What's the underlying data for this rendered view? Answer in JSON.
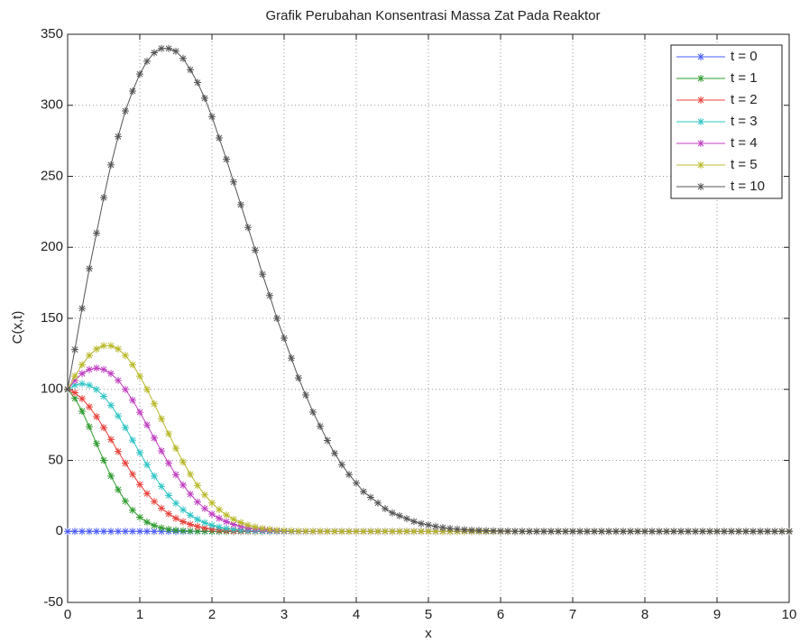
{
  "chart_data": {
    "type": "line",
    "title": "Grafik Perubahan Konsentrasi Massa Zat Pada Reaktor",
    "x_label": "x",
    "y_label": "C(x,t)",
    "xlim": [
      0,
      10
    ],
    "ylim": [
      -50,
      350
    ],
    "xticks": [
      0,
      1,
      2,
      3,
      4,
      5,
      6,
      7,
      8,
      9,
      10
    ],
    "yticks": [
      -50,
      0,
      50,
      100,
      150,
      200,
      250,
      300,
      350
    ],
    "grid": true,
    "legend": "upper right",
    "marker": "*",
    "x": [
      0,
      0.1,
      0.2,
      0.3,
      0.4,
      0.5,
      0.6,
      0.7,
      0.8,
      0.9,
      1,
      1.1,
      1.2,
      1.3,
      1.4,
      1.5,
      1.6,
      1.7,
      1.8,
      1.9,
      2,
      2.1,
      2.2,
      2.3,
      2.4,
      2.5,
      2.6,
      2.7,
      2.8,
      2.9,
      3,
      3.1,
      3.2,
      3.3,
      3.4,
      3.5,
      3.6,
      3.7,
      3.8,
      3.9,
      4,
      4.1,
      4.2,
      4.3,
      4.4,
      4.5,
      4.6,
      4.7,
      4.8,
      4.9,
      5,
      5.1,
      5.2,
      5.3,
      5.4,
      5.5,
      5.6,
      5.7,
      5.8,
      5.9,
      6,
      6.1,
      6.2,
      6.3,
      6.4,
      6.5,
      6.6,
      6.7,
      6.8,
      6.9,
      7,
      7.1,
      7.2,
      7.3,
      7.4,
      7.5,
      7.6,
      7.7,
      7.8,
      7.9,
      8,
      8.1,
      8.2,
      8.3,
      8.4,
      8.5,
      8.6,
      8.7,
      8.8,
      8.9,
      9,
      9.1,
      9.2,
      9.3,
      9.4,
      9.5,
      9.6,
      9.7,
      9.8,
      9.9,
      10
    ],
    "series": [
      {
        "name": "t = 0",
        "color": "#4a5cff",
        "values": [
          0,
          0,
          0,
          0,
          0,
          0,
          0,
          0,
          0,
          0,
          0,
          0,
          0,
          0,
          0,
          0,
          0,
          0,
          0,
          0,
          0,
          0,
          0,
          0,
          0,
          0,
          0,
          0,
          0,
          0,
          0,
          0,
          0,
          0,
          0,
          0,
          0,
          0,
          0,
          0,
          0,
          0,
          0,
          0,
          0,
          0,
          0,
          0,
          0,
          0,
          0,
          0,
          0,
          0,
          0,
          0,
          0,
          0,
          0,
          0,
          0,
          0,
          0,
          0,
          0,
          0,
          0,
          0,
          0,
          0,
          0,
          0,
          0,
          0,
          0,
          0,
          0,
          0,
          0,
          0,
          0,
          0,
          0,
          0,
          0,
          0,
          0,
          0,
          0,
          0,
          0,
          0,
          0,
          0,
          0,
          0,
          0,
          0,
          0,
          0,
          0
        ]
      },
      {
        "name": "t = 1",
        "color": "#2e9a2e",
        "values": [
          100,
          93.7,
          84.6,
          73.7,
          61.8,
          50.0,
          39.0,
          29.4,
          21.3,
          14.9,
          10.0,
          6.5,
          4.1,
          2.5,
          1.4,
          0.8,
          0.4,
          0.2,
          0.1,
          0.1,
          0,
          0,
          0,
          0,
          0,
          0,
          0,
          0,
          0,
          0,
          0,
          0,
          0,
          0,
          0,
          0,
          0,
          0,
          0,
          0,
          0,
          0,
          0,
          0,
          0,
          0,
          0,
          0,
          0,
          0,
          0,
          0,
          0,
          0,
          0,
          0,
          0,
          0,
          0,
          0,
          0,
          0,
          0,
          0,
          0,
          0,
          0,
          0,
          0,
          0,
          0,
          0,
          0,
          0,
          0,
          0,
          0,
          0,
          0,
          0,
          0,
          0,
          0,
          0,
          0,
          0,
          0,
          0,
          0,
          0,
          0,
          0,
          0,
          0,
          0,
          0,
          0,
          0,
          0,
          0,
          0
        ]
      },
      {
        "name": "t = 2",
        "color": "#e8403a",
        "values": [
          100,
          97.6,
          93.4,
          87.7,
          80.8,
          73.0,
          64.7,
          56.3,
          48.0,
          40.2,
          33.0,
          26.6,
          21.0,
          16.3,
          12.4,
          9.2,
          6.8,
          4.9,
          3.4,
          2.4,
          1.6,
          1.1,
          0.7,
          0.4,
          0.3,
          0.2,
          0.1,
          0.1,
          0,
          0,
          0,
          0,
          0,
          0,
          0,
          0,
          0,
          0,
          0,
          0,
          0,
          0,
          0,
          0,
          0,
          0,
          0,
          0,
          0,
          0,
          0,
          0,
          0,
          0,
          0,
          0,
          0,
          0,
          0,
          0,
          0,
          0,
          0,
          0,
          0,
          0,
          0,
          0,
          0,
          0,
          0,
          0,
          0,
          0,
          0,
          0,
          0,
          0,
          0,
          0,
          0,
          0,
          0,
          0,
          0,
          0,
          0,
          0,
          0,
          0,
          0,
          0,
          0,
          0,
          0,
          0,
          0,
          0,
          0,
          0,
          0
        ]
      },
      {
        "name": "t = 3",
        "color": "#2ec4c4",
        "values": [
          100,
          103.0,
          104.0,
          102.9,
          99.9,
          95.1,
          88.8,
          81.3,
          73.0,
          64.2,
          55.4,
          46.9,
          38.9,
          31.7,
          25.3,
          19.8,
          15.2,
          11.4,
          8.4,
          6.1,
          4.3,
          3.0,
          2.1,
          1.4,
          0.9,
          0.6,
          0.4,
          0.2,
          0.1,
          0.1,
          0,
          0,
          0,
          0,
          0,
          0,
          0,
          0,
          0,
          0,
          0,
          0,
          0,
          0,
          0,
          0,
          0,
          0,
          0,
          0,
          0,
          0,
          0,
          0,
          0,
          0,
          0,
          0,
          0,
          0,
          0,
          0,
          0,
          0,
          0,
          0,
          0,
          0,
          0,
          0,
          0,
          0,
          0,
          0,
          0,
          0,
          0,
          0,
          0,
          0,
          0,
          0,
          0,
          0,
          0,
          0,
          0,
          0,
          0,
          0,
          0,
          0,
          0,
          0,
          0,
          0,
          0,
          0,
          0,
          0,
          0
        ]
      },
      {
        "name": "t = 4",
        "color": "#c03ec0",
        "values": [
          100,
          106.3,
          111.1,
          114.0,
          115.0,
          114.0,
          111.1,
          106.3,
          100,
          92.4,
          83.9,
          74.9,
          65.7,
          56.6,
          48.0,
          39.9,
          32.6,
          26.2,
          20.7,
          16.1,
          12.2,
          9.2,
          6.8,
          4.9,
          3.5,
          2.4,
          1.7,
          1.1,
          0.7,
          0.5,
          0.3,
          0.2,
          0.1,
          0.1,
          0,
          0,
          0,
          0,
          0,
          0,
          0,
          0,
          0,
          0,
          0,
          0,
          0,
          0,
          0,
          0,
          0,
          0,
          0,
          0,
          0,
          0,
          0,
          0,
          0,
          0,
          0,
          0,
          0,
          0,
          0,
          0,
          0,
          0,
          0,
          0,
          0,
          0,
          0,
          0,
          0,
          0,
          0,
          0,
          0,
          0,
          0,
          0,
          0,
          0,
          0,
          0,
          0,
          0,
          0,
          0,
          0,
          0,
          0,
          0,
          0,
          0,
          0,
          0,
          0,
          0,
          0
        ]
      },
      {
        "name": "t = 5",
        "color": "#b8b82a",
        "values": [
          100,
          109.3,
          117.4,
          123.9,
          128.4,
          130.7,
          130.7,
          128.4,
          123.9,
          117.4,
          109.3,
          100.0,
          89.8,
          79.2,
          68.7,
          58.5,
          48.9,
          40.2,
          32.4,
          25.7,
          20.0,
          15.3,
          11.5,
          8.5,
          6.2,
          4.4,
          3.1,
          2.1,
          1.4,
          0.9,
          0.6,
          0.4,
          0.2,
          0.2,
          0.1,
          0.1,
          0,
          0,
          0,
          0,
          0,
          0,
          0,
          0,
          0,
          0,
          0,
          0,
          0,
          0,
          0,
          0,
          0,
          0,
          0,
          0,
          0,
          0,
          0,
          0,
          0,
          0,
          0,
          0,
          0,
          0,
          0,
          0,
          0,
          0,
          0,
          0,
          0,
          0,
          0,
          0,
          0,
          0,
          0,
          0,
          0,
          0,
          0,
          0,
          0,
          0,
          0,
          0,
          0,
          0,
          0,
          0,
          0,
          0,
          0,
          0,
          0,
          0,
          0,
          0,
          0
        ]
      },
      {
        "name": "t = 10",
        "color": "#555555",
        "values": [
          100,
          128,
          157,
          185,
          210,
          235,
          258,
          278,
          296,
          310,
          322,
          331,
          337,
          340,
          340,
          338,
          333,
          325,
          316,
          305,
          292,
          277,
          262,
          246,
          230,
          214,
          198,
          181,
          166,
          150,
          136,
          122,
          108,
          96,
          84,
          74,
          64,
          55,
          47,
          40,
          34,
          28,
          24,
          20,
          16,
          13,
          11,
          9,
          7,
          5.5,
          4.5,
          3.5,
          2.7,
          2.1,
          1.6,
          1.2,
          0.9,
          0.7,
          0.5,
          0.4,
          0.3,
          0.2,
          0.1,
          0.1,
          0,
          0,
          0,
          0,
          0,
          0,
          0,
          0,
          0,
          0,
          0,
          0,
          0,
          0,
          0,
          0,
          0,
          0,
          0,
          0,
          0,
          0,
          0,
          0,
          0,
          0,
          0,
          0,
          0,
          0,
          0,
          0,
          0,
          0,
          0,
          0,
          0
        ]
      }
    ]
  }
}
